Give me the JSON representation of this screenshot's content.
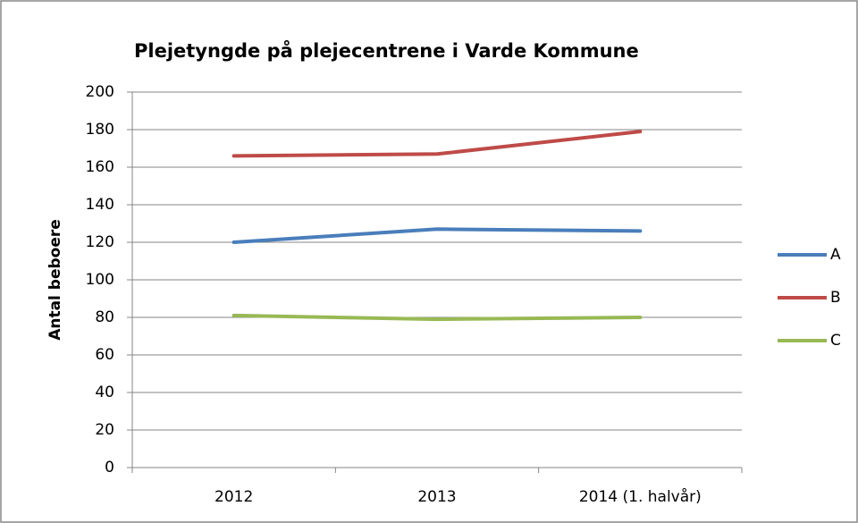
{
  "chart_data": {
    "type": "line",
    "title": "Plejetyngde på plejecentrene i Varde Kommune",
    "y_label": "Antal beboere",
    "categories": [
      "2012",
      "2013",
      "2014 (1. halvår)"
    ],
    "series": [
      {
        "name": "A",
        "color": "#4a7ebb",
        "values": [
          120,
          127,
          126
        ]
      },
      {
        "name": "B",
        "color": "#be4b48",
        "values": [
          166,
          167,
          179
        ]
      },
      {
        "name": "C",
        "color": "#98b954",
        "values": [
          81,
          79,
          80
        ]
      }
    ],
    "ylim": [
      0,
      200
    ],
    "yticks": [
      0,
      20,
      40,
      60,
      80,
      100,
      120,
      140,
      160,
      180,
      200
    ],
    "grid": true,
    "legend": "right"
  }
}
